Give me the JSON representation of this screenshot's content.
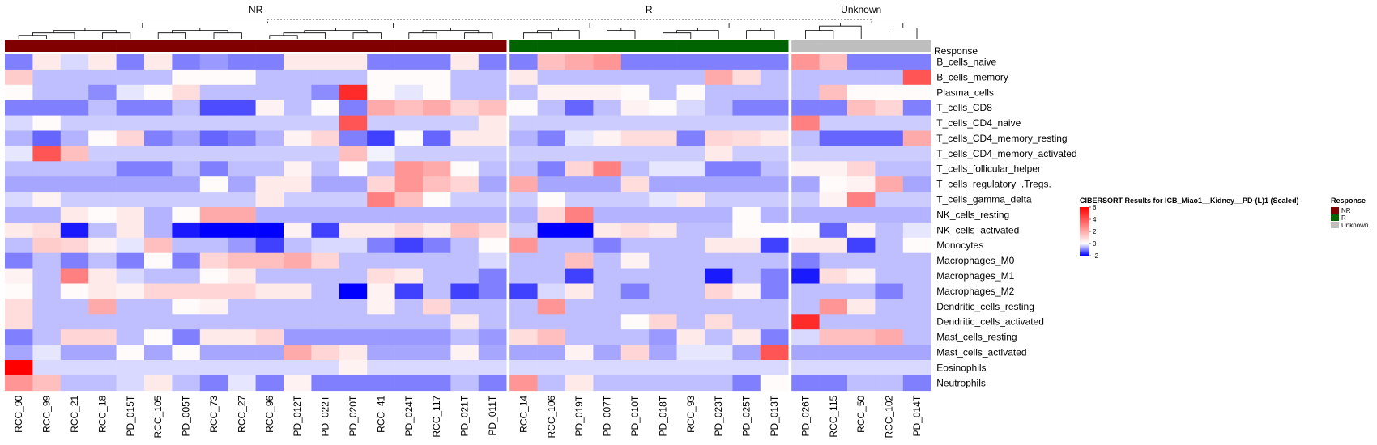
{
  "chart_data": {
    "type": "heatmap",
    "title": "CIBERSORT Results for ICB_Miao1__Kidney__PD-(L)1 (Scaled)",
    "legend_title": "Response",
    "groups": [
      {
        "name": "NR",
        "color": "#800000"
      },
      {
        "name": "R",
        "color": "#006400"
      },
      {
        "name": "Unknown",
        "color": "#bebebe"
      }
    ],
    "annotation_label": "Response",
    "color_scale": {
      "min": -2,
      "max": 6,
      "low": "#0000ff",
      "mid": "#ffffff",
      "high": "#ff0000",
      "ticks": [
        "6",
        "4",
        "2",
        "0",
        "-2"
      ]
    },
    "columns": [
      {
        "id": "RCC_90",
        "group": "NR"
      },
      {
        "id": "RCC_99",
        "group": "NR"
      },
      {
        "id": "RCC_21",
        "group": "NR"
      },
      {
        "id": "RCC_18",
        "group": "NR"
      },
      {
        "id": "PD_015T",
        "group": "NR"
      },
      {
        "id": "RCC_105",
        "group": "NR"
      },
      {
        "id": "PD_005T",
        "group": "NR"
      },
      {
        "id": "RCC_73",
        "group": "NR"
      },
      {
        "id": "RCC_27",
        "group": "NR"
      },
      {
        "id": "RCC_96",
        "group": "NR"
      },
      {
        "id": "PD_012T",
        "group": "NR"
      },
      {
        "id": "PD_022T",
        "group": "NR"
      },
      {
        "id": "PD_020T",
        "group": "NR"
      },
      {
        "id": "RCC_41",
        "group": "NR"
      },
      {
        "id": "PD_024T",
        "group": "NR"
      },
      {
        "id": "RCC_117",
        "group": "NR"
      },
      {
        "id": "PD_021T",
        "group": "NR"
      },
      {
        "id": "PD_011T",
        "group": "NR"
      },
      {
        "id": "RCC_14",
        "group": "R"
      },
      {
        "id": "RCC_106",
        "group": "R"
      },
      {
        "id": "PD_019T",
        "group": "R"
      },
      {
        "id": "PD_007T",
        "group": "R"
      },
      {
        "id": "PD_010T",
        "group": "R"
      },
      {
        "id": "PD_018T",
        "group": "R"
      },
      {
        "id": "RCC_93",
        "group": "R"
      },
      {
        "id": "PD_023T",
        "group": "R"
      },
      {
        "id": "PD_025T",
        "group": "R"
      },
      {
        "id": "PD_013T",
        "group": "R"
      },
      {
        "id": "PD_026T",
        "group": "Unknown"
      },
      {
        "id": "RCC_115",
        "group": "Unknown"
      },
      {
        "id": "RCC_50",
        "group": "Unknown"
      },
      {
        "id": "RCC_102",
        "group": "Unknown"
      },
      {
        "id": "PD_014T",
        "group": "Unknown"
      }
    ],
    "rows": [
      "B_cells_naive",
      "B_cells_memory",
      "Plasma_cells",
      "T_cells_CD8",
      "T_cells_CD4_naive",
      "T_cells_CD4_memory_resting",
      "T_cells_CD4_memory_activated",
      "T_cells_follicular_helper",
      "T_cells_regulatory_.Tregs.",
      "T_cells_gamma_delta",
      "NK_cells_resting",
      "NK_cells_activated",
      "Monocytes",
      "Macrophages_M0",
      "Macrophages_M1",
      "Macrophages_M2",
      "Dendritic_cells_resting",
      "Dendritic_cells_activated",
      "Mast_cells_resting",
      "Mast_cells_activated",
      "Eosinophils",
      "Neutrophils"
    ],
    "values": [
      [
        -1.0,
        0.5,
        -0.3,
        0.5,
        -1.0,
        0.5,
        -1.0,
        -0.8,
        -1.0,
        -1.0,
        0.5,
        0.5,
        0.5,
        -1.0,
        -1.0,
        -1.0,
        0.5,
        -1.0,
        -1.0,
        1.5,
        2.0,
        2.5,
        -1.0,
        -1.0,
        -1.0,
        -1.0,
        -1.0,
        -1.0,
        2.5,
        1.5,
        -1.0,
        -1.0,
        -1.0
      ],
      [
        1.2,
        -0.5,
        -0.5,
        -0.5,
        -0.5,
        -0.5,
        0.1,
        0.1,
        0.1,
        -0.5,
        -0.5,
        -0.5,
        -0.5,
        0.1,
        0.1,
        0.1,
        -0.5,
        -0.5,
        0.5,
        -0.5,
        -0.5,
        -0.5,
        -0.5,
        -0.5,
        -0.5,
        2.0,
        0.8,
        -0.5,
        -0.5,
        -0.5,
        -0.5,
        -0.5,
        4.0
      ],
      [
        0.1,
        -0.5,
        -0.5,
        -0.9,
        -0.2,
        0.1,
        0.8,
        -0.5,
        -0.5,
        -0.5,
        -0.5,
        -0.9,
        5.0,
        0.1,
        -0.2,
        0.1,
        -0.5,
        -0.5,
        -0.5,
        0.3,
        0.3,
        0.3,
        0.1,
        -0.5,
        0.1,
        -0.5,
        -0.5,
        -0.5,
        -0.5,
        1.5,
        0.1,
        0.1,
        0.1
      ],
      [
        -1.0,
        -1.0,
        -1.0,
        -0.5,
        -1.0,
        -1.0,
        -0.5,
        -1.4,
        -1.4,
        0.3,
        -0.5,
        0.1,
        -1.0,
        2.0,
        1.5,
        2.0,
        1.0,
        1.5,
        0.1,
        -0.5,
        -1.2,
        -0.5,
        0.3,
        0.1,
        -0.3,
        -0.5,
        -1.0,
        -1.0,
        -1.0,
        -1.0,
        1.5,
        1.0,
        -1.0
      ],
      [
        -0.3,
        0.1,
        -0.4,
        -0.4,
        -0.4,
        -0.4,
        -0.4,
        -0.4,
        -0.4,
        -0.4,
        -0.4,
        -0.4,
        4.0,
        -0.4,
        -0.4,
        -0.4,
        -0.4,
        0.5,
        -0.4,
        -0.4,
        -0.4,
        -0.4,
        -0.4,
        -0.4,
        -0.4,
        -0.4,
        -0.4,
        -0.4,
        3.0,
        -0.4,
        -0.4,
        -0.4,
        -0.4
      ],
      [
        -0.6,
        -1.2,
        -0.6,
        0.1,
        1.0,
        -1.0,
        -0.7,
        -1.2,
        -1.0,
        -0.6,
        0.3,
        1.0,
        -1.0,
        -1.5,
        0.1,
        -1.2,
        0.5,
        0.5,
        -0.6,
        -1.0,
        -0.2,
        0.3,
        0.8,
        0.8,
        -1.0,
        1.0,
        0.8,
        0.5,
        -0.5,
        -1.2,
        -1.2,
        -1.2,
        2.0
      ],
      [
        -0.2,
        4.0,
        1.5,
        -0.4,
        -0.4,
        -0.4,
        -0.4,
        -0.4,
        -0.4,
        -0.4,
        -0.4,
        -0.4,
        1.5,
        -0.1,
        -0.4,
        -0.4,
        -0.4,
        -0.4,
        -0.4,
        -0.4,
        -0.4,
        -0.4,
        -0.4,
        -0.4,
        -0.4,
        0.5,
        -0.4,
        -0.4,
        -0.4,
        -0.4,
        -0.4,
        -0.4,
        -0.4
      ],
      [
        -0.5,
        -0.5,
        -0.5,
        -0.5,
        -1.0,
        -1.0,
        -0.5,
        -1.0,
        -0.5,
        -0.5,
        0.3,
        -0.5,
        0.1,
        -0.5,
        2.5,
        2.0,
        0.1,
        -0.5,
        -0.5,
        -1.0,
        1.0,
        3.0,
        -0.5,
        -0.2,
        -0.2,
        -1.0,
        -1.0,
        -0.5,
        0.3,
        0.3,
        1.0,
        -0.5,
        -0.5
      ],
      [
        -0.7,
        -0.7,
        -0.7,
        -0.7,
        -0.7,
        -0.7,
        -0.7,
        0.1,
        -0.7,
        0.5,
        0.5,
        -0.7,
        -0.7,
        1.0,
        2.5,
        1.5,
        1.0,
        -0.7,
        2.0,
        -0.7,
        -0.7,
        -0.7,
        0.8,
        -0.7,
        -0.7,
        -0.7,
        -0.7,
        -0.7,
        -0.7,
        0.1,
        0.3,
        2.0,
        -0.7
      ],
      [
        -0.3,
        0.3,
        -0.4,
        -0.4,
        -0.4,
        -0.4,
        -0.4,
        -0.4,
        -0.4,
        0.5,
        -0.4,
        -0.4,
        -0.4,
        3.0,
        1.5,
        0.1,
        -0.4,
        -0.4,
        -0.4,
        0.1,
        -0.4,
        -0.4,
        -0.4,
        -0.2,
        0.5,
        -0.4,
        -0.4,
        -0.4,
        -0.4,
        0.3,
        3.0,
        -0.4,
        -0.4
      ],
      [
        -0.6,
        -0.6,
        0.5,
        0.1,
        0.5,
        -0.6,
        0.1,
        2.0,
        2.0,
        -0.6,
        -0.6,
        -0.6,
        -0.6,
        -0.6,
        -0.6,
        -0.6,
        -0.6,
        -0.6,
        -0.6,
        1.0,
        3.0,
        -0.6,
        -0.6,
        -0.6,
        -0.6,
        -0.6,
        0.1,
        -0.6,
        -0.6,
        -0.6,
        -0.6,
        -0.6,
        -0.6
      ],
      [
        0.5,
        0.8,
        -1.8,
        -0.5,
        0.5,
        -0.6,
        -1.8,
        -2.0,
        -2.0,
        -2.0,
        0.3,
        -1.5,
        0.5,
        0.5,
        1.0,
        0.5,
        1.5,
        1.0,
        -0.4,
        -2.0,
        -2.0,
        0.5,
        0.8,
        0.5,
        -0.5,
        -0.5,
        0.1,
        0.1,
        0.1,
        -1.2,
        0.3,
        -0.5,
        -0.2
      ],
      [
        -0.5,
        1.2,
        1.0,
        0.3,
        -0.2,
        1.5,
        -0.5,
        -0.5,
        -0.8,
        -1.5,
        -0.5,
        -0.3,
        -0.3,
        -1.0,
        -1.5,
        -1.0,
        -0.5,
        0.1,
        2.5,
        -0.5,
        -0.5,
        -1.0,
        -0.5,
        -0.5,
        -0.5,
        0.5,
        0.5,
        -1.5,
        0.5,
        0.5,
        -1.5,
        -0.5,
        0.1
      ],
      [
        -1.0,
        -0.5,
        -1.0,
        -0.5,
        -1.0,
        0.1,
        -1.0,
        1.0,
        1.5,
        1.5,
        2.0,
        1.0,
        -0.5,
        -0.5,
        -0.5,
        -0.5,
        -0.5,
        -0.3,
        -0.5,
        -0.5,
        1.5,
        -0.5,
        0.3,
        -0.5,
        -0.5,
        -0.5,
        -0.5,
        -0.5,
        -1.0,
        -0.5,
        -0.5,
        -0.5,
        -0.5
      ],
      [
        0.3,
        -0.5,
        3.0,
        0.5,
        -0.3,
        -0.5,
        -0.5,
        0.1,
        0.5,
        -0.5,
        -0.5,
        -0.5,
        -0.5,
        0.8,
        0.5,
        -0.5,
        -0.5,
        -1.0,
        -0.5,
        -0.5,
        -1.5,
        -0.5,
        -0.5,
        -0.5,
        -0.5,
        -1.8,
        -0.5,
        -1.0,
        -1.8,
        0.8,
        0.3,
        -0.5,
        -0.5
      ],
      [
        0.1,
        -0.5,
        0.1,
        0.5,
        0.3,
        1.0,
        1.0,
        1.0,
        1.0,
        0.5,
        0.5,
        -0.5,
        -2.0,
        0.3,
        -1.5,
        -0.5,
        -1.5,
        -1.0,
        -1.5,
        -0.3,
        0.5,
        -0.5,
        -1.0,
        -0.5,
        -0.5,
        1.0,
        0.3,
        -1.0,
        -0.5,
        -0.5,
        -0.5,
        -1.0,
        -0.5
      ],
      [
        0.8,
        -0.5,
        -0.5,
        2.0,
        -0.5,
        -0.5,
        0.1,
        0.3,
        -0.5,
        -0.5,
        -0.5,
        -0.5,
        -0.5,
        0.3,
        -0.5,
        1.0,
        -0.5,
        -0.5,
        -0.5,
        2.5,
        -0.5,
        -0.5,
        -0.5,
        -0.5,
        -0.5,
        -0.5,
        -0.5,
        -0.5,
        -0.5,
        2.5,
        0.5,
        -0.5,
        -0.5
      ],
      [
        0.8,
        -0.5,
        -0.5,
        -0.5,
        -0.5,
        -0.5,
        -0.5,
        -0.5,
        -0.5,
        -0.5,
        -0.5,
        -0.5,
        -0.5,
        -0.5,
        -0.5,
        -0.5,
        0.5,
        -0.5,
        -0.5,
        -0.5,
        -0.5,
        -0.5,
        0.1,
        1.0,
        -0.5,
        0.8,
        -0.5,
        -0.5,
        5.0,
        -0.5,
        -0.5,
        -0.5,
        -0.5
      ],
      [
        -1.0,
        -0.5,
        1.0,
        1.0,
        -0.5,
        0.1,
        -1.0,
        0.5,
        0.5,
        1.0,
        -0.8,
        -0.8,
        -0.8,
        -0.8,
        -0.8,
        -0.8,
        -0.5,
        -0.8,
        0.8,
        1.5,
        -0.5,
        -0.5,
        -0.5,
        -0.8,
        0.5,
        -0.5,
        0.5,
        -1.0,
        -0.3,
        1.5,
        1.5,
        2.0,
        -0.5
      ],
      [
        -0.7,
        -0.2,
        -0.7,
        -0.7,
        0.1,
        -0.7,
        0.1,
        -0.7,
        -0.7,
        -0.7,
        2.0,
        1.0,
        0.5,
        -0.7,
        -0.7,
        -0.7,
        0.3,
        -0.7,
        -0.7,
        -0.7,
        0.3,
        -0.7,
        1.0,
        -0.7,
        -0.2,
        -0.2,
        -0.7,
        4.0,
        -0.7,
        -0.7,
        -0.7,
        -0.7,
        -0.7
      ],
      [
        6.0,
        -0.3,
        -0.3,
        -0.3,
        -0.3,
        -0.3,
        -0.3,
        -0.3,
        -0.3,
        -0.3,
        -0.3,
        -0.3,
        0.3,
        -0.3,
        -0.3,
        -0.3,
        -0.3,
        -0.3,
        -0.3,
        -0.3,
        -0.3,
        -0.3,
        -0.3,
        -0.3,
        -0.3,
        -0.3,
        -0.3,
        -0.3,
        -0.3,
        -0.3,
        -0.3,
        -0.3,
        -0.3
      ],
      [
        2.5,
        1.5,
        -0.5,
        -0.5,
        -0.3,
        0.5,
        -0.5,
        -1.0,
        -0.2,
        -1.0,
        0.3,
        -1.0,
        -1.0,
        -1.0,
        -1.0,
        -1.0,
        -0.5,
        -1.0,
        2.5,
        -0.5,
        0.5,
        -0.5,
        -0.5,
        -0.5,
        -0.5,
        -0.5,
        -1.0,
        0.1,
        -1.0,
        -1.0,
        -0.5,
        -0.5,
        -1.0
      ]
    ]
  }
}
